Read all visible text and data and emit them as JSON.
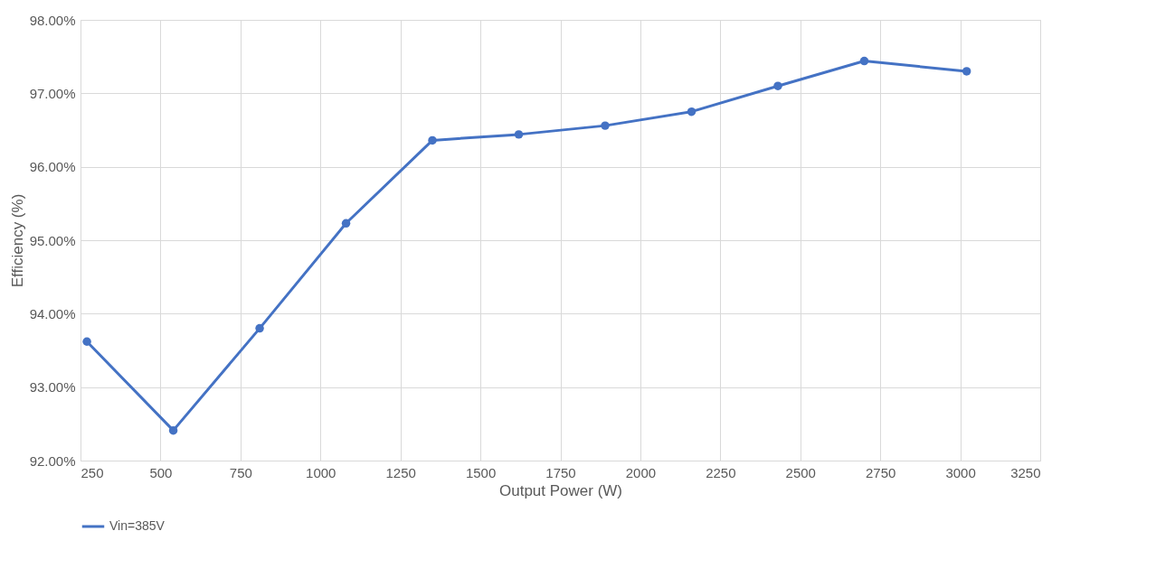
{
  "chart_data": {
    "type": "line",
    "xlabel": "Output Power (W)",
    "ylabel": "Efficiency (%)",
    "x": [
      270,
      540,
      810,
      1080,
      1350,
      1620,
      1890,
      2160,
      2430,
      2700,
      3020
    ],
    "series": [
      {
        "name": "Vin=385V",
        "color": "#4472c4",
        "values": [
          93.62,
          92.41,
          93.8,
          95.23,
          96.36,
          96.44,
          96.56,
          96.75,
          97.1,
          97.44,
          97.3
        ]
      }
    ],
    "xlim": [
      250,
      3250
    ],
    "xticks": [
      250,
      500,
      750,
      1000,
      1250,
      1500,
      1750,
      2000,
      2250,
      2500,
      2750,
      3000,
      3250
    ],
    "ylim": [
      92,
      98
    ],
    "yticks": [
      {
        "value": 92,
        "label": "92.00%"
      },
      {
        "value": 93,
        "label": "93.00%"
      },
      {
        "value": 94,
        "label": "94.00%"
      },
      {
        "value": 95,
        "label": "95.00%"
      },
      {
        "value": 96,
        "label": "96.00%"
      },
      {
        "value": 97,
        "label": "97.00%"
      },
      {
        "value": 98,
        "label": "98.00%"
      }
    ],
    "grid": true,
    "legend": "bottom",
    "marker": "circle",
    "line_style": "solid"
  }
}
